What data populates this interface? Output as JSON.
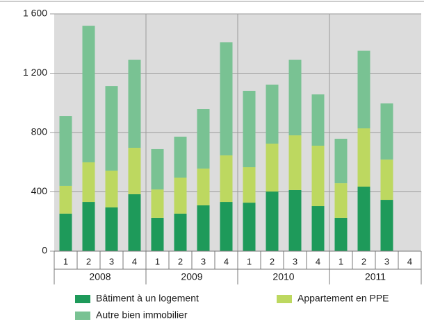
{
  "chart_data": {
    "type": "stacked_bar",
    "categories": [
      "1",
      "2",
      "3",
      "4",
      "1",
      "2",
      "3",
      "4",
      "1",
      "2",
      "3",
      "4",
      "1",
      "2",
      "3",
      "4"
    ],
    "groups": [
      "2008",
      "2009",
      "2010",
      "2011"
    ],
    "series": [
      {
        "name": "Bâtiment à un logement",
        "color": "#1e9a5a",
        "values": [
          253,
          332,
          295,
          384,
          225,
          253,
          309,
          332,
          327,
          402,
          412,
          304,
          225,
          435,
          346,
          null
        ]
      },
      {
        "name": "Appartement en PPE",
        "color": "#bdd860",
        "values": [
          187,
          267,
          248,
          313,
          191,
          243,
          248,
          314,
          239,
          323,
          369,
          407,
          233,
          393,
          272,
          null
        ]
      },
      {
        "name": "Autre bien immobilier",
        "color": "#79c293",
        "values": [
          472,
          921,
          570,
          594,
          272,
          276,
          402,
          762,
          515,
          398,
          510,
          346,
          300,
          524,
          378,
          null
        ]
      }
    ],
    "ylim": [
      0,
      1600
    ],
    "yticks": [
      0,
      400,
      800,
      {
        "value": 1200,
        "label": "1 200"
      },
      {
        "value": 1600,
        "label": "1 600"
      }
    ],
    "grid": true
  }
}
